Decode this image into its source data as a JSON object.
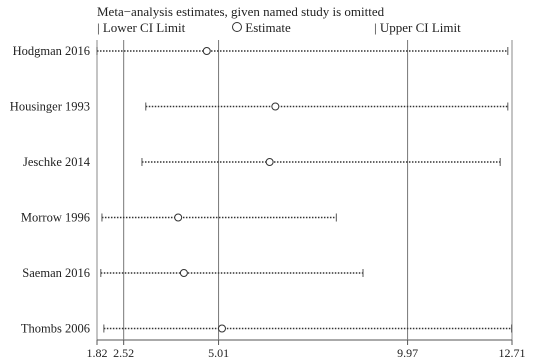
{
  "chart_data": {
    "type": "sensitivity-forest",
    "title": "Meta−analysis estimates, given named study is omitted",
    "legend": {
      "lower": "Lower CI Limit",
      "estimate": "Estimate",
      "upper": "Upper CI Limit"
    },
    "studies": [
      {
        "name": "Hodgman 2016",
        "lower": 1.82,
        "estimate": 4.7,
        "upper": 12.6
      },
      {
        "name": "Housinger 1993",
        "lower": 3.1,
        "estimate": 6.5,
        "upper": 12.6
      },
      {
        "name": "Jeschke 2014",
        "lower": 3.0,
        "estimate": 6.35,
        "upper": 12.4
      },
      {
        "name": "Morrow 1996",
        "lower": 1.95,
        "estimate": 3.95,
        "upper": 8.1
      },
      {
        "name": "Saeman 2016",
        "lower": 1.92,
        "estimate": 4.1,
        "upper": 8.8
      },
      {
        "name": "Thombs 2006",
        "lower": 2.0,
        "estimate": 5.1,
        "upper": 12.7
      }
    ],
    "x_ticks": [
      1.82,
      2.52,
      5.01,
      9.97,
      12.71
    ],
    "reference_lines": [
      2.52,
      5.01,
      9.97
    ],
    "xlim": [
      1.82,
      12.71
    ]
  }
}
